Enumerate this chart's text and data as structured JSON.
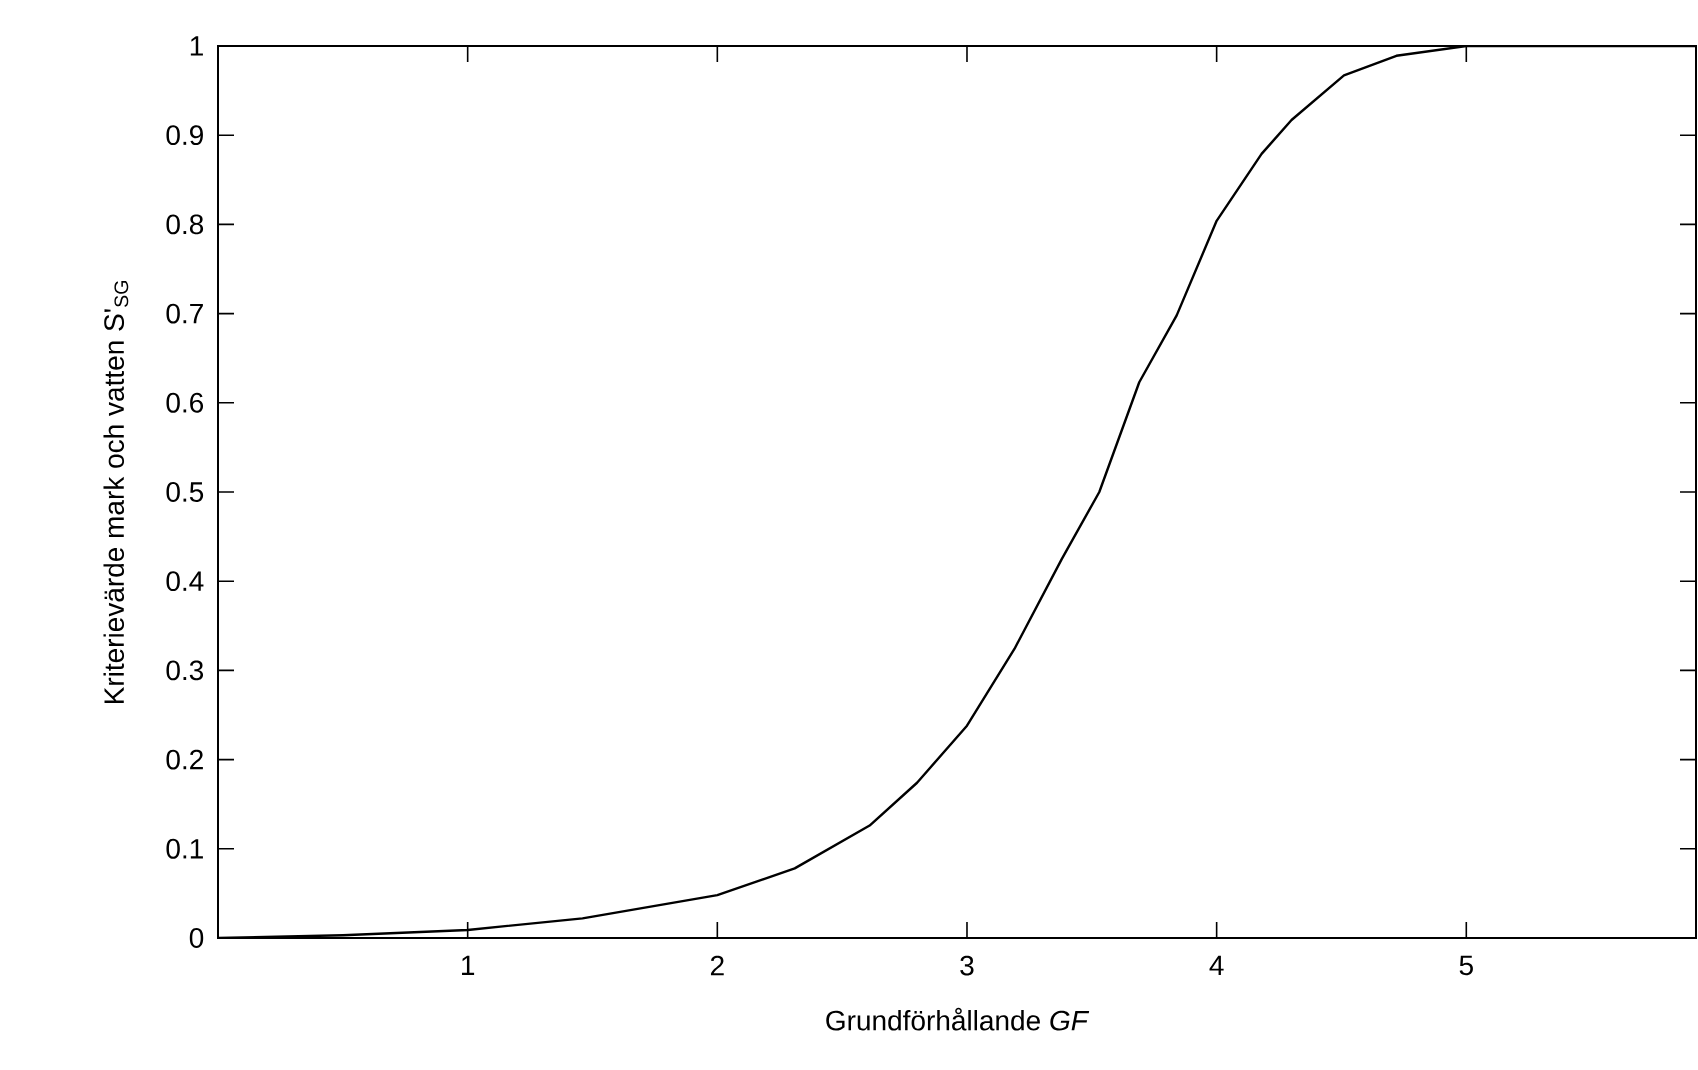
{
  "chart_data": {
    "type": "line",
    "xlabel": "Grundförhållande *GF*",
    "ylabel": "Kriterievärde mark och vatten S'$_{SG}$",
    "x": [
      0,
      0.5,
      1,
      1.46,
      2,
      2.31,
      2.61,
      2.8,
      3,
      3.19,
      3.38,
      3.53,
      3.69,
      3.84,
      4,
      4.18,
      4.3,
      4.51,
      4.72,
      5,
      5.92
    ],
    "values": [
      0,
      0.003,
      0.009,
      0.022,
      0.048,
      0.078,
      0.126,
      0.174,
      0.238,
      0.324,
      0.425,
      0.5,
      0.623,
      0.698,
      0.804,
      0.879,
      0.917,
      0.967,
      0.989,
      1,
      1
    ],
    "color": "#000000",
    "xlim": [
      0,
      5.92
    ],
    "ylim": [
      0,
      1
    ],
    "xticks": [
      1,
      2,
      3,
      4,
      5
    ],
    "yticks": [
      0,
      0.1,
      0.2,
      0.3,
      0.4,
      0.5,
      0.6,
      0.7,
      0.8,
      0.9,
      1
    ],
    "grid": false,
    "marker": "none",
    "line_style": "solid"
  }
}
